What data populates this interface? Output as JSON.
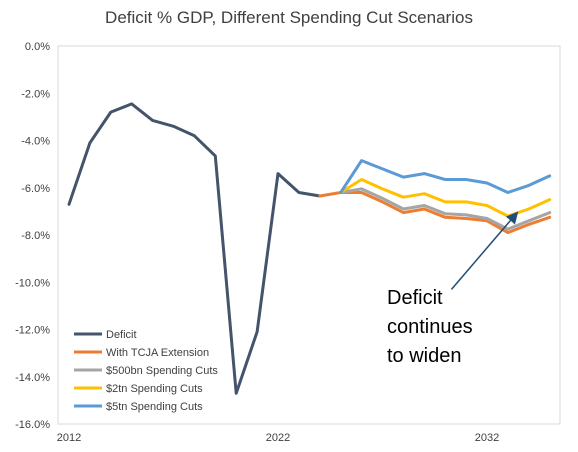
{
  "chart_data": {
    "type": "line",
    "title": "Deficit % GDP, Different Spending Cut Scenarios",
    "xlabel": "",
    "ylabel": "",
    "xlim": [
      2012,
      2035
    ],
    "ylim": [
      -16,
      0
    ],
    "y_ticks": [
      0,
      -2,
      -4,
      -6,
      -8,
      -10,
      -12,
      -14,
      -16
    ],
    "y_tick_labels": [
      "0.0%",
      "-2.0%",
      "-4.0%",
      "-6.0%",
      "-8.0%",
      "-10.0%",
      "-12.0%",
      "-14.0%",
      "-16.0%"
    ],
    "x_ticks": [
      2012,
      2022,
      2032
    ],
    "x_tick_labels": [
      "2012",
      "2022",
      "2032"
    ],
    "grid": false,
    "legend_position": "bottom-left",
    "series": [
      {
        "name": "Deficit",
        "color": "#44546A",
        "x": [
          2012,
          2013,
          2014,
          2015,
          2016,
          2017,
          2018,
          2019,
          2020,
          2021,
          2022,
          2023,
          2024
        ],
        "y": [
          -6.7,
          -4.1,
          -2.8,
          -2.45,
          -3.15,
          -3.4,
          -3.8,
          -4.65,
          -14.7,
          -12.1,
          -5.4,
          -6.2,
          -6.35
        ]
      },
      {
        "name": "With TCJA Extension",
        "color": "#ED7D31",
        "x": [
          2024,
          2025,
          2026,
          2027,
          2028,
          2029,
          2030,
          2031,
          2032,
          2033,
          2034,
          2035
        ],
        "y": [
          -6.35,
          -6.2,
          -6.2,
          -6.6,
          -7.05,
          -6.9,
          -7.25,
          -7.3,
          -7.4,
          -7.9,
          -7.55,
          -7.25
        ]
      },
      {
        "name": "$500bn Spending Cuts",
        "color": "#A5A5A5",
        "x": [
          2025,
          2026,
          2027,
          2028,
          2029,
          2030,
          2031,
          2032,
          2033,
          2034,
          2035
        ],
        "y": [
          -6.2,
          -6.05,
          -6.45,
          -6.9,
          -6.75,
          -7.1,
          -7.15,
          -7.3,
          -7.75,
          -7.4,
          -7.05
        ]
      },
      {
        "name": "$2tn Spending Cuts",
        "color": "#FFC000",
        "x": [
          2025,
          2026,
          2027,
          2028,
          2029,
          2030,
          2031,
          2032,
          2033,
          2034,
          2035
        ],
        "y": [
          -6.2,
          -5.65,
          -6.05,
          -6.4,
          -6.25,
          -6.6,
          -6.6,
          -6.75,
          -7.2,
          -6.9,
          -6.5
        ]
      },
      {
        "name": "$5tn Spending Cuts",
        "color": "#5B9BD5",
        "x": [
          2025,
          2026,
          2027,
          2028,
          2029,
          2030,
          2031,
          2032,
          2033,
          2034,
          2035
        ],
        "y": [
          -6.2,
          -4.85,
          -5.2,
          -5.55,
          -5.4,
          -5.65,
          -5.65,
          -5.8,
          -6.2,
          -5.9,
          -5.5
        ]
      }
    ],
    "annotation": {
      "text": "Deficit\ncontinues\nto widen",
      "arrow_from": [
        2030.3,
        -10.3
      ],
      "arrow_to": [
        2033.4,
        -7.1
      ]
    }
  }
}
